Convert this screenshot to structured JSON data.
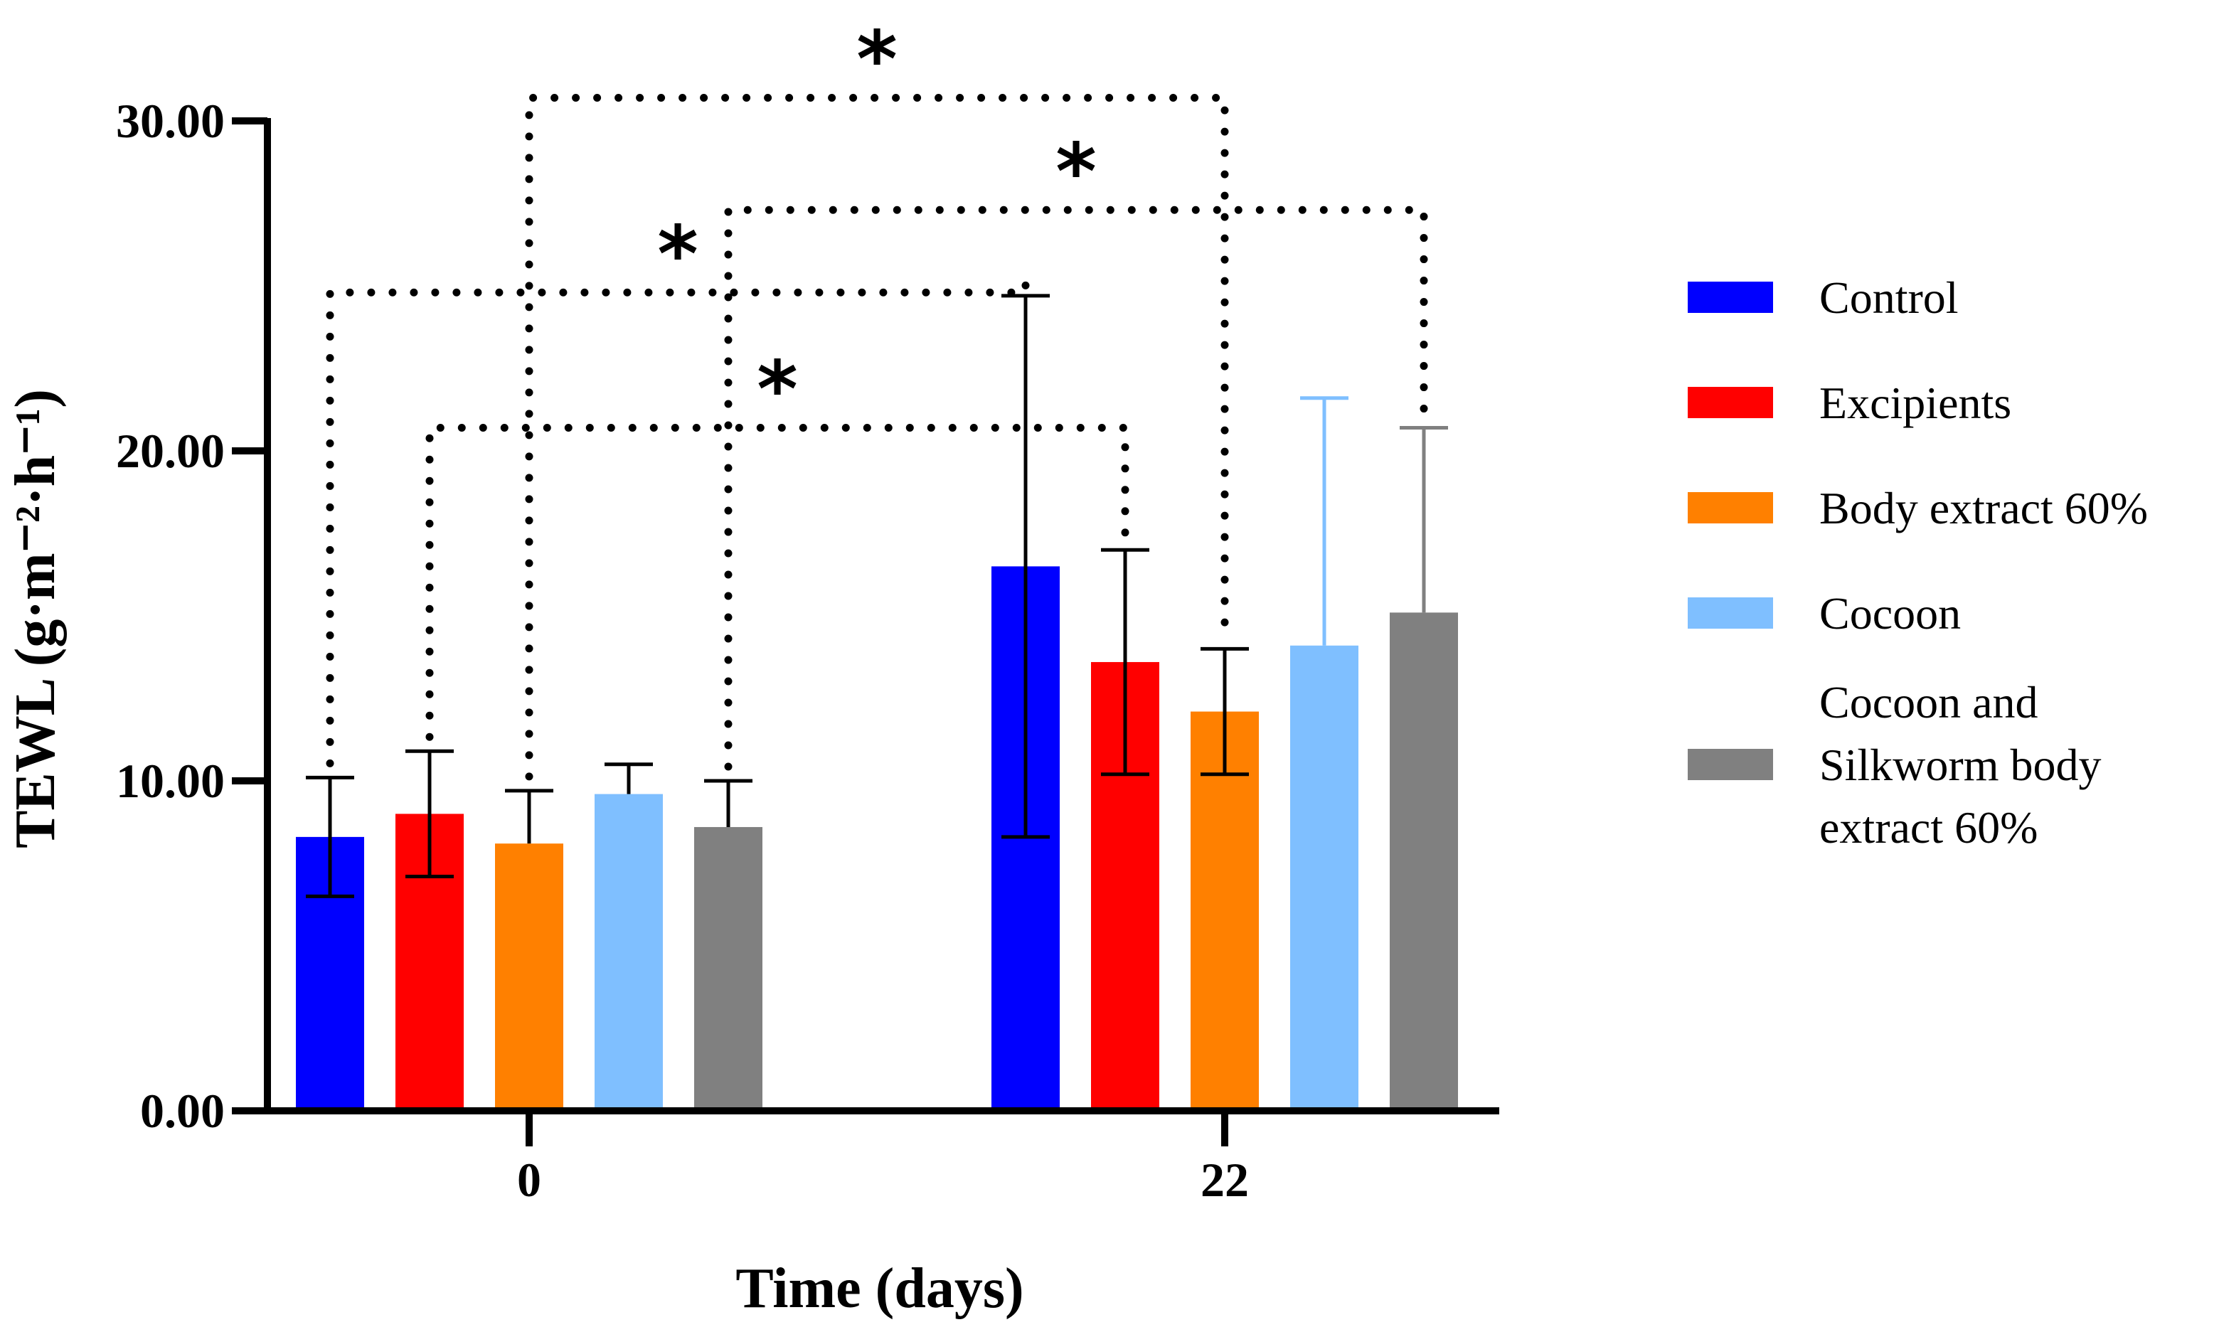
{
  "chart_data": {
    "type": "bar",
    "title": "",
    "xlabel": "Time (days)",
    "ylabel": "TEWL (g·m⁻²·h⁻¹)",
    "ylim": [
      0,
      30
    ],
    "yticks": [
      0,
      10,
      20,
      30
    ],
    "ytick_labels": [
      "0.00",
      "10.00",
      "20.00",
      "30.00"
    ],
    "categories": [
      "0",
      "22"
    ],
    "series": [
      {
        "name": "Control",
        "color": "#0000ff",
        "values": [
          8.3,
          16.5
        ],
        "errors": [
          1.8,
          8.2
        ]
      },
      {
        "name": "Excipients",
        "color": "#ff0000",
        "values": [
          9.0,
          13.6
        ],
        "errors": [
          1.9,
          3.4
        ]
      },
      {
        "name": "Body extract 60%",
        "color": "#ff8000",
        "values": [
          8.1,
          12.1
        ],
        "errors": [
          1.6,
          1.9
        ]
      },
      {
        "name": "Cocoon",
        "color": "#7fbfff",
        "values": [
          9.6,
          14.1
        ],
        "errors": [
          0.9,
          7.5
        ]
      },
      {
        "name": "Cocoon and Silkworm body extract 60%",
        "legend_lines": [
          "Cocoon and",
          "Silkworm body",
          "extract 60%"
        ],
        "color": "#808080",
        "values": [
          8.6,
          15.1
        ],
        "errors": [
          1.4,
          5.6
        ]
      }
    ],
    "significance": [
      {
        "from": [
          0,
          0
        ],
        "to": [
          1,
          0
        ],
        "y": 24.8,
        "label": "*"
      },
      {
        "from": [
          0,
          1
        ],
        "to": [
          1,
          1
        ],
        "y": 20.7,
        "label": "*"
      },
      {
        "from": [
          0,
          2
        ],
        "to": [
          1,
          2
        ],
        "y": 30.7,
        "label": "*"
      },
      {
        "from": [
          0,
          4
        ],
        "to": [
          1,
          4
        ],
        "y": 27.3,
        "label": "*"
      }
    ],
    "legend_position": "right"
  }
}
